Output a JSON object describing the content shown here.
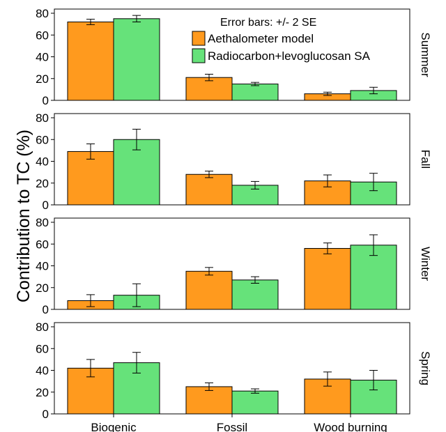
{
  "chart_data": {
    "type": "bar",
    "ylabel": "Contribution to TC (%)",
    "ylim": [
      0,
      80
    ],
    "yticks": [
      0,
      20,
      40,
      60,
      80
    ],
    "categories": [
      "Biogenic",
      "Fossil",
      "Wood burning"
    ],
    "legend": {
      "title": "Error bars: +/- 2 SE",
      "placement": "top-right, inside first panel"
    },
    "series": [
      {
        "name": "Aethalometer model",
        "color": "#FF9A1E"
      },
      {
        "name": "Radiocarbon+levoglucosan SA",
        "color": "#66E27A"
      }
    ],
    "panels": [
      {
        "label": "Summer",
        "values": [
          [
            72,
            21,
            6
          ],
          [
            75,
            15,
            9
          ]
        ],
        "error": [
          [
            2.5,
            3,
            1.5
          ],
          [
            3,
            1.5,
            3
          ]
        ]
      },
      {
        "label": "Fall",
        "values": [
          [
            49,
            28,
            22
          ],
          [
            60,
            18,
            21
          ]
        ],
        "error": [
          [
            7,
            3,
            5.5
          ],
          [
            9.5,
            3.5,
            8
          ]
        ]
      },
      {
        "label": "Winter",
        "values": [
          [
            8,
            35,
            56
          ],
          [
            13,
            27,
            59
          ]
        ],
        "error": [
          [
            5.5,
            3.5,
            5
          ],
          [
            10.5,
            3,
            9.5
          ]
        ]
      },
      {
        "label": "Spring",
        "values": [
          [
            42,
            25,
            32
          ],
          [
            47,
            21,
            31
          ]
        ],
        "error": [
          [
            8,
            3.5,
            6.5
          ],
          [
            9.5,
            2,
            9
          ]
        ]
      }
    ]
  }
}
